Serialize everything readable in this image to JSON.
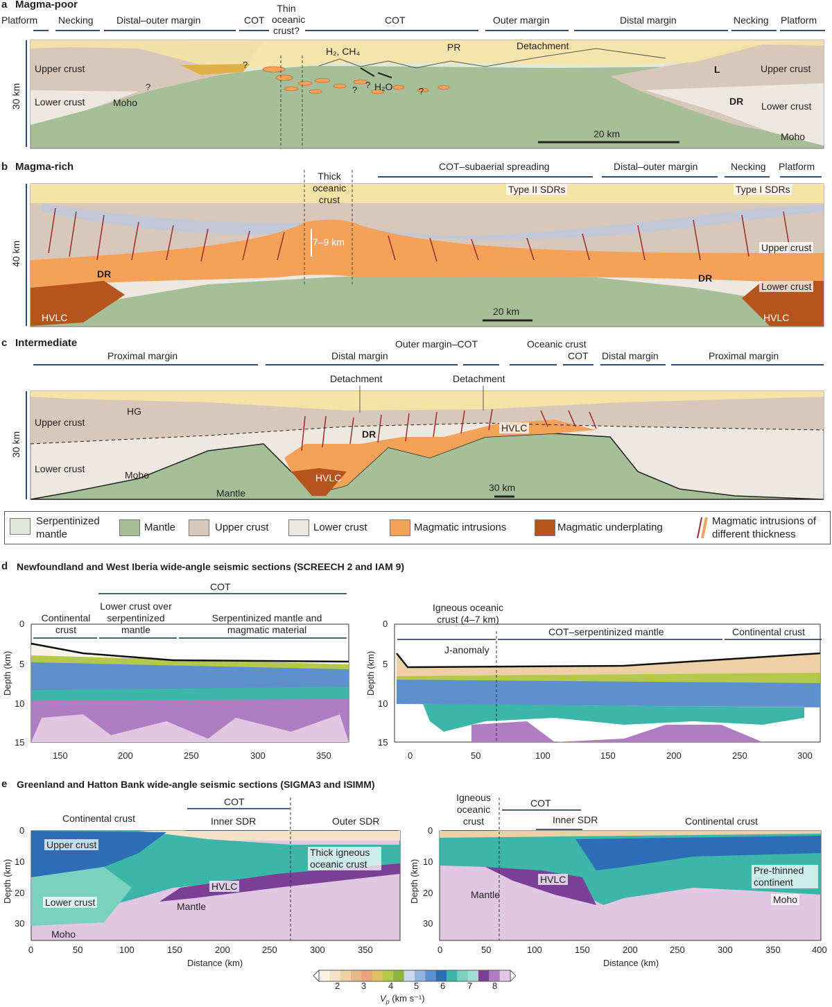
{
  "panels": {
    "a": {
      "letter": "a",
      "title": "Magma-poor",
      "segments": [
        "Platform",
        "Necking",
        "Distal–outer margin",
        "COT",
        "Thin oceanic crust?",
        "COT",
        "Outer margin",
        "Distal margin",
        "Necking",
        "Platform"
      ],
      "labels": {
        "upper_crust_left": "Upper crust",
        "lower_crust_left": "Lower crust",
        "moho_left": "Moho",
        "upper_crust_right": "Upper crust",
        "lower_crust_right": "Lower crust",
        "moho_right": "Moho",
        "h2ch4": "H₂, CH₄",
        "h2o": "H₂O",
        "pr": "PR",
        "detachment": "Detachment",
        "l": "L",
        "dr": "DR",
        "q1": "?",
        "q2": "?",
        "q3": "?",
        "q4": "?",
        "q5": "?"
      },
      "depth_label": "30 km",
      "scale_label": "20 km"
    },
    "b": {
      "letter": "b",
      "title": "Magma-rich",
      "segments": [
        "Thick oceanic crust",
        "COT–subaerial spreading",
        "Distal–outer margin",
        "Necking",
        "Platform",
        "Type II SDRs",
        "Type I SDRs"
      ],
      "labels": {
        "thickness": "7–9 km",
        "dr_left": "DR",
        "dr_right": "DR",
        "hvlc_left": "HVLC",
        "hvlc_right": "HVLC",
        "upper_crust": "Upper crust",
        "lower_crust": "Lower crust"
      },
      "depth_label": "40 km",
      "scale_label": "20 km"
    },
    "c": {
      "letter": "c",
      "title": "Intermediate",
      "segments": [
        "Proximal margin",
        "Distal margin",
        "Outer margin–COT",
        "Oceanic crust",
        "COT",
        "Distal margin",
        "Proximal margin"
      ],
      "labels": {
        "detachment_1": "Detachment",
        "detachment_2": "Detachment",
        "hg": "HG",
        "upper_crust": "Upper crust",
        "lower_crust": "Lower crust",
        "moho": "Moho",
        "mantle": "Mantle",
        "dr": "DR",
        "hvlc_1": "HVLC",
        "hvlc_2": "HVLC"
      },
      "depth_label": "30 km",
      "scale_label": "30 km"
    },
    "d": {
      "letter": "d",
      "title": "Newfoundland and West Iberia wide-angle seismic sections (SCREECH 2 and IAM 9)",
      "left": {
        "top_label": "COT",
        "segments": [
          "Continental crust",
          "Lower crust over serpentinized mantle",
          "Serpentinized mantle and magmatic material"
        ],
        "ylabel": "Depth (km)",
        "y_ticks": [
          "0",
          "5",
          "10",
          "15"
        ],
        "x_ticks": [
          "150",
          "200",
          "250",
          "300",
          "350"
        ]
      },
      "right": {
        "segments": [
          "Igneous oceanic crust (4–7 km)",
          "COT–serpentinized mantle",
          "Continental crust"
        ],
        "j_anomaly": "J-anomaly",
        "ylabel": "Depth (km)",
        "y_ticks": [
          "0",
          "5",
          "10",
          "15"
        ],
        "x_ticks": [
          "0",
          "50",
          "100",
          "150",
          "200",
          "250",
          "300"
        ]
      }
    },
    "e": {
      "letter": "e",
      "title": "Greenland and Hatton Bank wide-angle seismic sections (SIGMA3 and ISIMM)",
      "left": {
        "segments": [
          "Continental crust",
          "COT",
          "Inner SDR",
          "Outer SDR"
        ],
        "labels": {
          "upper_crust": "Upper crust",
          "lower_crust": "Lower crust",
          "moho": "Moho",
          "hvlc": "HVLC",
          "mantle": "Mantle",
          "thick_igneous": "Thick igneous oceanic crust"
        },
        "ylabel": "Depth (km)",
        "xlabel": "Distance (km)",
        "y_ticks": [
          "0",
          "10",
          "20",
          "30"
        ],
        "x_ticks": [
          "0",
          "50",
          "100",
          "150",
          "200",
          "250",
          "300",
          "350"
        ]
      },
      "right": {
        "segments": [
          "Igneous oceanic crust",
          "COT",
          "Inner SDR",
          "Continental crust"
        ],
        "labels": {
          "mantle": "Mantle",
          "hvlc": "HVLC",
          "pre_thinned": "Pre-thinned continent",
          "moho": "Moho"
        },
        "ylabel": "Depth (km)",
        "xlabel": "Distance (km)",
        "y_ticks": [
          "0",
          "10",
          "20",
          "30"
        ],
        "x_ticks": [
          "0",
          "50",
          "100",
          "150",
          "200",
          "250",
          "300",
          "350",
          "400"
        ]
      }
    }
  },
  "legend": [
    {
      "label": "Serpentinized mantle",
      "color": "#dfe9d9"
    },
    {
      "label": "Mantle",
      "color": "#a6bf98"
    },
    {
      "label": "Upper crust",
      "color": "#d8c8bb"
    },
    {
      "label": "Lower crust",
      "color": "#eee8e0"
    },
    {
      "label": "Magmatic intrusions",
      "color": "#f4a259"
    },
    {
      "label": "Magmatic underplating",
      "color": "#b5541c"
    },
    {
      "label": "Magmatic intrusions of different thickness",
      "color": "#9e2a2b"
    }
  ],
  "colorbar": {
    "ticks": [
      "2",
      "3",
      "4",
      "5",
      "6",
      "7",
      "8"
    ],
    "label": "V",
    "label_sub": "p",
    "label_unit": " (km s⁻¹)",
    "colors": [
      "#faf3e6",
      "#f5e2c9",
      "#efcfa6",
      "#e9b88a",
      "#e9a37e",
      "#dcc263",
      "#b4c94c",
      "#8fb33e",
      "#c9d9ef",
      "#93b4dd",
      "#5f8fcc",
      "#2c6db5",
      "#3cb6a8",
      "#7bd1c0",
      "#a3ddd2",
      "#7a3f97",
      "#b07dc2",
      "#e0c8e2"
    ]
  }
}
